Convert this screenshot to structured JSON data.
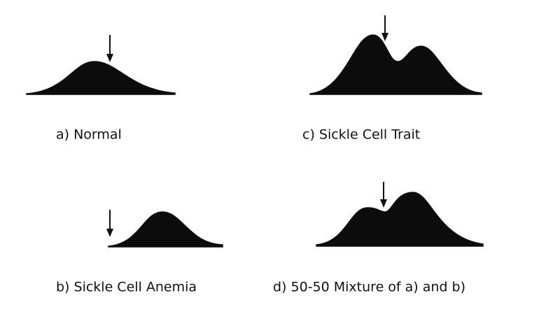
{
  "panels": [
    {
      "label": "a) Normal"
    },
    {
      "label": "b) Sickle Cell Anemia"
    },
    {
      "label": "c) Sickle Cell Trait"
    },
    {
      "label": "d) 50-50 Mixture of a) and b)"
    }
  ]
}
